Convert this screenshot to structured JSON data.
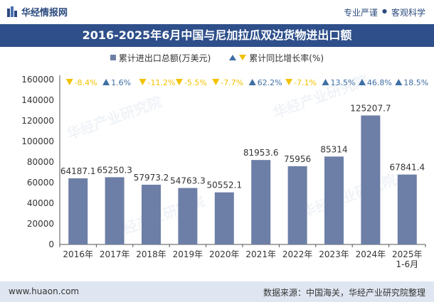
{
  "header": {
    "brand": "华经情报网",
    "tagline_left": "专业严谨",
    "tagline_sep": "●",
    "tagline_right": "客观科学"
  },
  "title": "2016-2025年6月中国与尼加拉瓜双边货物进出口额",
  "footer": {
    "website": "www.huaon.com",
    "source": "数据来源：中国海关，华经产业研究院整理"
  },
  "watermark": "华经产业研究院",
  "chart_data": {
    "type": "bar",
    "categories": [
      "2016年",
      "2017年",
      "2018年",
      "2019年",
      "2020年",
      "2021年",
      "2022年",
      "2023年",
      "2024年",
      "2025年\n1-6月"
    ],
    "series": [
      {
        "name": "累计进出口总额(万美元)",
        "values": [
          64187.1,
          65250.3,
          57973.2,
          54763.3,
          50552.1,
          81953.6,
          75956,
          85314,
          125207.7,
          67841.4
        ],
        "value_labels": [
          "64187.1",
          "65250.3",
          "57973.2",
          "54763.3",
          "50552.1",
          "81953.6",
          "75956",
          "85314",
          "125207.7",
          "67841.4"
        ],
        "color": "#6d7fa6"
      },
      {
        "name": "累计同比增长率(%)",
        "values": [
          -8.4,
          1.6,
          -11.2,
          -5.5,
          -7.7,
          62.2,
          -7.1,
          13.5,
          46.8,
          18.5
        ],
        "value_labels": [
          "-8.4%",
          "1.6%",
          "-11.2%",
          "-5.5%",
          "-7.7%",
          "62.2%",
          "-7.1%",
          "13.5%",
          "46.8%",
          "18.5%"
        ],
        "up_color": "#3f6fa3",
        "down_color": "#f2c200"
      }
    ],
    "y_ticks": [
      "0",
      "20000",
      "40000",
      "60000",
      "80000",
      "100000",
      "120000",
      "140000",
      "160000"
    ],
    "ylim": [
      0,
      160000
    ],
    "grid": false,
    "legend_position": "top-center"
  }
}
